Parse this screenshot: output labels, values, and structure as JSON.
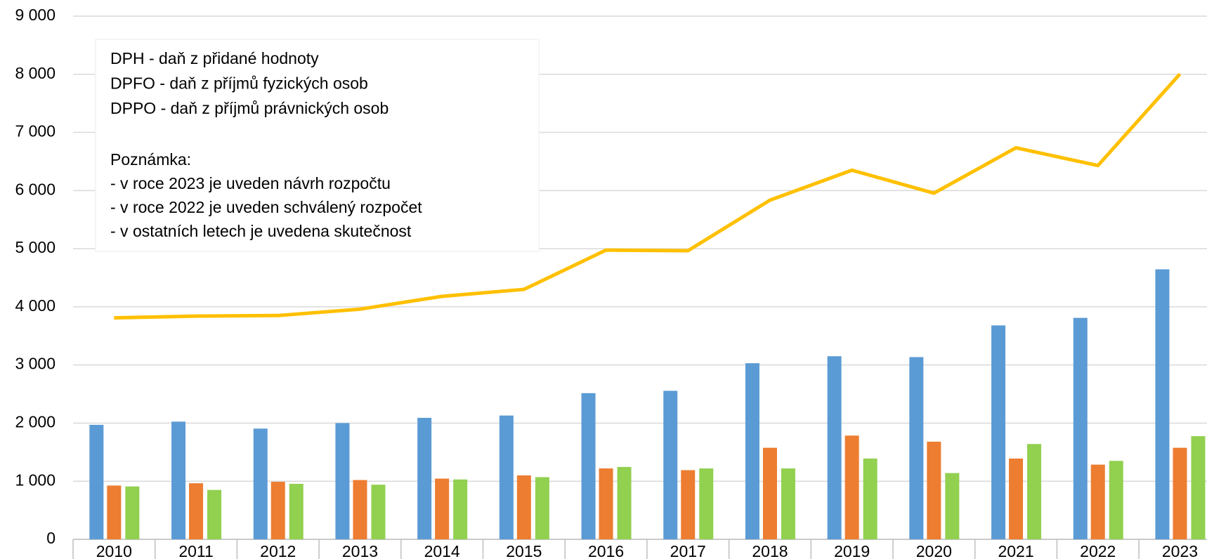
{
  "chart_data": {
    "type": "bar",
    "categories": [
      "2010",
      "2011",
      "2012",
      "2013",
      "2014",
      "2015",
      "2016",
      "2017",
      "2018",
      "2019",
      "2020",
      "2021",
      "2022",
      "2023"
    ],
    "series": [
      {
        "name": "DPH - daň z přidané hodnoty",
        "color": "#5b9bd5",
        "type": "bar",
        "values": [
          1970,
          2025,
          1905,
          2000,
          2090,
          2130,
          2515,
          2555,
          3030,
          3150,
          3135,
          3680,
          3810,
          4645
        ]
      },
      {
        "name": "DPFO - daň z příjmů fyzických osob",
        "color": "#ed7d31",
        "type": "bar",
        "values": [
          925,
          965,
          990,
          1020,
          1045,
          1100,
          1220,
          1190,
          1575,
          1785,
          1680,
          1390,
          1285,
          1575
        ]
      },
      {
        "name": "DPPO - daň z příjmů právnických osob",
        "color": "#92d050",
        "type": "bar",
        "values": [
          910,
          850,
          955,
          940,
          1030,
          1070,
          1245,
          1220,
          1220,
          1390,
          1140,
          1640,
          1350,
          1775
        ]
      },
      {
        "color": "#ffc000",
        "type": "line",
        "values": [
          3810,
          3840,
          3850,
          3960,
          4180,
          4300,
          4975,
          4965,
          5835,
          6350,
          5955,
          6735,
          6430,
          8005
        ]
      }
    ],
    "legend_text_colors": [
      "#8497b0",
      "#c55a11",
      "#92d050"
    ],
    "annotation": [
      "Poznámka:",
      "- v roce 2023 je uveden návrh rozpočtu",
      "- v roce 2022 je uveden schválený rozpočet",
      "- v ostatních letech je uvedena skutečnost"
    ],
    "ylim": [
      0,
      9000
    ],
    "yticks": [
      0,
      {
        "value": 1000,
        "label": "1 000"
      },
      {
        "value": 2000,
        "label": "2 000"
      },
      {
        "value": 3000,
        "label": "3 000"
      },
      {
        "value": 4000,
        "label": "4 000"
      },
      {
        "value": 5000,
        "label": "5 000"
      },
      {
        "value": 6000,
        "label": "6 000"
      },
      {
        "value": 7000,
        "label": "7 000"
      },
      {
        "value": 8000,
        "label": "8 000"
      },
      {
        "value": 9000,
        "label": "9 000"
      }
    ],
    "grid": true
  }
}
